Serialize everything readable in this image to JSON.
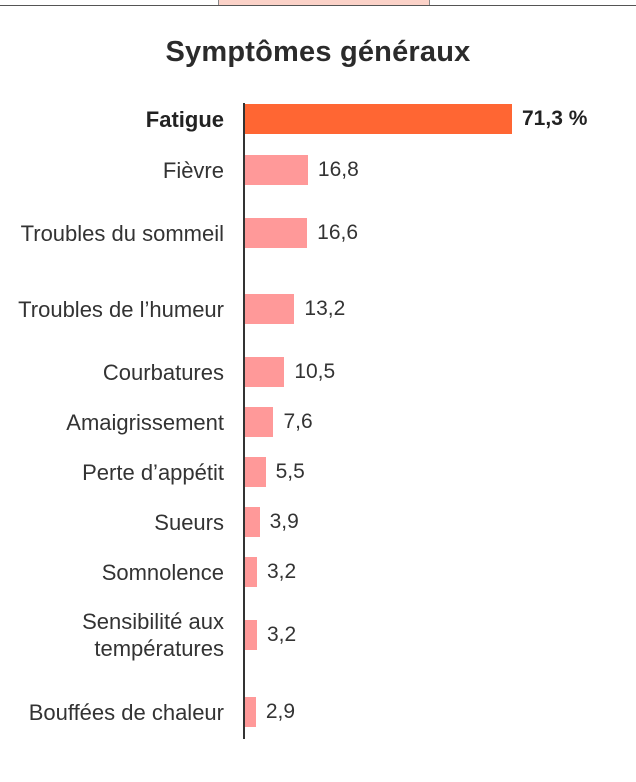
{
  "chart_data": {
    "type": "bar",
    "orientation": "horizontal",
    "title": "Symptômes généraux",
    "categories": [
      "Fatigue",
      "Fièvre",
      "Troubles du sommeil",
      "Troubles de l’humeur",
      "Courbatures",
      "Amaigrissement",
      "Perte d’appétit",
      "Sueurs",
      "Somnolence",
      "Sensibilité aux températures",
      "Bouffées de chaleur"
    ],
    "values": [
      71.3,
      16.8,
      16.6,
      13.2,
      10.5,
      7.6,
      5.5,
      3.9,
      3.2,
      3.2,
      2.9
    ],
    "value_labels": [
      "71,3 %",
      "16,8",
      "16,6",
      "13,2",
      "10,5",
      "7,6",
      "5,5",
      "3,9",
      "3,2",
      "3,2",
      "2,9"
    ],
    "highlight_index": 0,
    "xlim": [
      0,
      71.3
    ],
    "colors": {
      "highlight": "#ff6633",
      "default": "#ff9999",
      "axis": "#333333"
    }
  }
}
